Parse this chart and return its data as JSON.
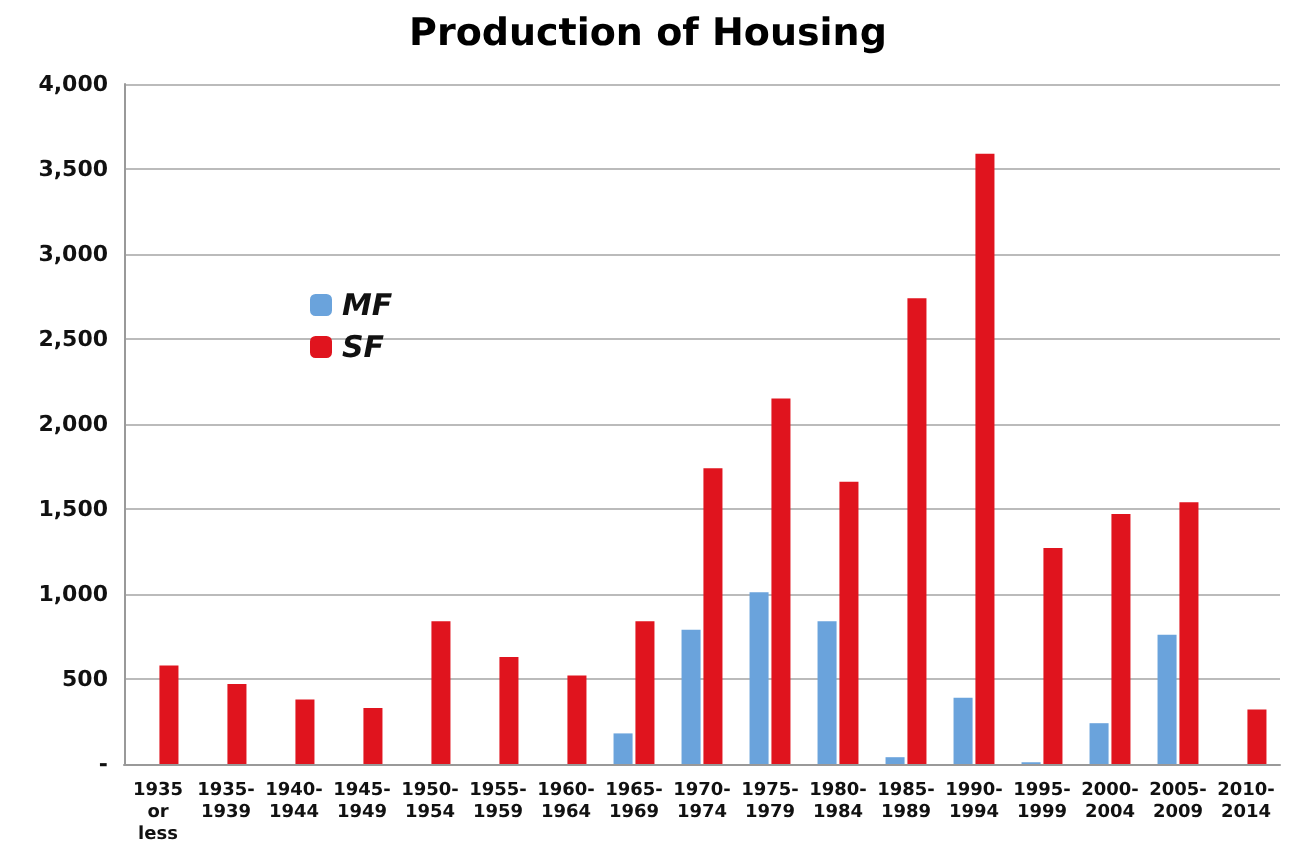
{
  "chart_data": {
    "type": "bar",
    "title": "Production of Housing",
    "categories": [
      "1935 or less",
      "1935-1939",
      "1940-1944",
      "1945-1949",
      "1950-1954",
      "1955-1959",
      "1960-1964",
      "1965-1969",
      "1970-1974",
      "1975-1979",
      "1980-1984",
      "1985-1989",
      "1990-1994",
      "1995-1999",
      "2000-2004",
      "2005-2009",
      "2010-2014"
    ],
    "series": [
      {
        "name": "MF",
        "color": "#6aa3dc",
        "values": [
          0,
          0,
          0,
          0,
          0,
          0,
          0,
          180,
          790,
          1010,
          840,
          40,
          390,
          10,
          240,
          760,
          0
        ]
      },
      {
        "name": "SF",
        "color": "#e0141e",
        "values": [
          580,
          470,
          380,
          330,
          840,
          630,
          520,
          840,
          1740,
          2150,
          1660,
          2740,
          3590,
          1270,
          1470,
          1540,
          320
        ]
      }
    ],
    "ylim": [
      0,
      4000
    ],
    "yticks": [
      {
        "value": 0,
        "label": "-"
      },
      {
        "value": 500,
        "label": "500"
      },
      {
        "value": 1000,
        "label": "1,000"
      },
      {
        "value": 1500,
        "label": "1,500"
      },
      {
        "value": 2000,
        "label": "2,000"
      },
      {
        "value": 2500,
        "label": "2,500"
      },
      {
        "value": 3000,
        "label": "3,000"
      },
      {
        "value": 3500,
        "label": "3,500"
      },
      {
        "value": 4000,
        "label": "4,000"
      }
    ],
    "grid": "y",
    "legend": "top left"
  }
}
